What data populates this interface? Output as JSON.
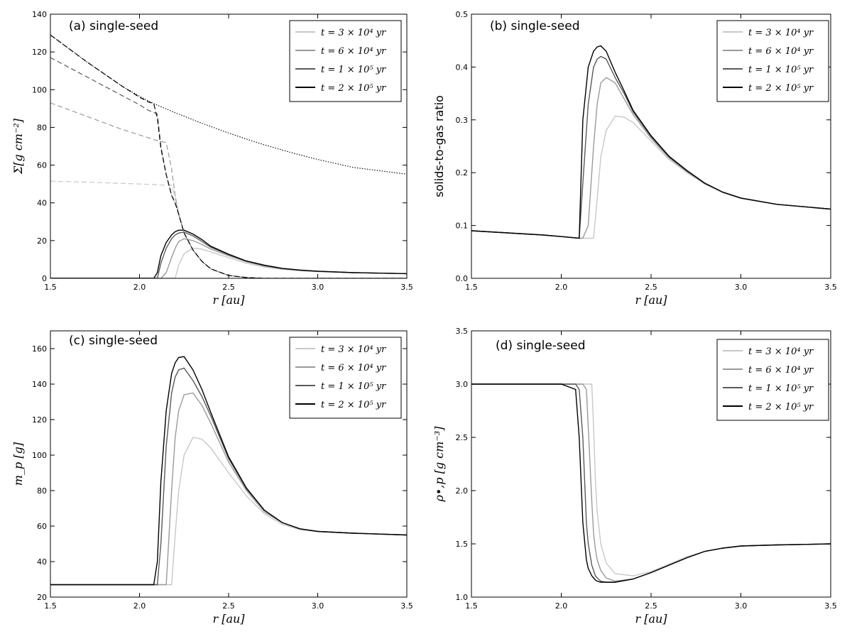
{
  "figure": {
    "panels": [
      {
        "id": "a",
        "title": "(a) single-seed",
        "xlabel": "r [au]",
        "ylabel": "Σ[g cm⁻²]"
      },
      {
        "id": "b",
        "title": "(b) single-seed",
        "xlabel": "r [au]",
        "ylabel": "solids-to-gas ratio"
      },
      {
        "id": "c",
        "title": "(c) single-seed",
        "xlabel": "r [au]",
        "ylabel": "m_p [g]"
      },
      {
        "id": "d",
        "title": "(d) single-seed",
        "xlabel": "r [au]",
        "ylabel": "ρ•,p [g cm⁻³]"
      }
    ]
  },
  "colors": {
    "t1": "#c8c8c8",
    "t2": "#9a9a9a",
    "t3": "#5a5a5a",
    "t4": "#000000"
  },
  "chart_data": [
    {
      "type": "line",
      "title": "(a) single-seed",
      "xlabel": "r [au]",
      "ylabel": "Σ[g cm⁻²]",
      "xlim": [
        1.5,
        3.5
      ],
      "ylim": [
        0,
        140
      ],
      "xticks": [
        1.5,
        2.0,
        2.5,
        3.0,
        3.5
      ],
      "yticks": [
        0,
        20,
        40,
        60,
        80,
        100,
        120,
        140
      ],
      "legend_position": "top-right",
      "x": [
        1.5,
        1.7,
        1.9,
        2.0,
        2.05,
        2.08,
        2.1,
        2.12,
        2.15,
        2.18,
        2.2,
        2.22,
        2.25,
        2.3,
        2.35,
        2.4,
        2.5,
        2.6,
        2.7,
        2.8,
        2.9,
        3.0,
        3.2,
        3.5
      ],
      "series": [
        {
          "name": "t = 3 × 10⁴ yr",
          "role": "solid",
          "color_key": "t1",
          "values": [
            0,
            0,
            0,
            0,
            0,
            0,
            0,
            0,
            0,
            0,
            0,
            7,
            13,
            16,
            15.5,
            14,
            11,
            8,
            6,
            4.8,
            4,
            3.5,
            3,
            2.5
          ]
        },
        {
          "name": "t = 6 × 10⁴ yr",
          "role": "solid",
          "color_key": "t2",
          "values": [
            0,
            0,
            0,
            0,
            0,
            0,
            0,
            0,
            3,
            11,
            16,
            19.5,
            21,
            20,
            18,
            15.5,
            12,
            8.8,
            6.5,
            5,
            4.2,
            3.7,
            3,
            2.5
          ]
        },
        {
          "name": "t = 1 × 10⁵ yr",
          "role": "solid",
          "color_key": "t3",
          "values": [
            0,
            0,
            0,
            0,
            0,
            0,
            0,
            8,
            16,
            21,
            23,
            24,
            24.5,
            22.5,
            19.5,
            16.5,
            12.5,
            9,
            6.8,
            5.2,
            4.3,
            3.7,
            3,
            2.5
          ]
        },
        {
          "name": "t = 2 × 10⁵ yr",
          "role": "solid",
          "color_key": "t4",
          "values": [
            0,
            0,
            0,
            0,
            0,
            0,
            3,
            12,
            19,
            23,
            24.7,
            25.5,
            25.5,
            23.5,
            20.5,
            17,
            12.8,
            9.2,
            7,
            5.3,
            4.4,
            3.8,
            3,
            2.5
          ]
        },
        {
          "name": "gas t = 3 × 10⁴ yr",
          "role": "dashed",
          "color_key": "t1",
          "values": [
            51.5,
            51,
            50.3,
            50,
            49.8,
            49.7,
            49.6,
            49.5,
            49.5,
            49.4,
            43,
            34,
            24,
            15,
            9,
            5,
            1.5,
            0.4,
            0,
            0,
            0,
            0,
            0,
            0
          ]
        },
        {
          "name": "gas t = 6 × 10⁴ yr",
          "role": "dashed",
          "color_key": "t2",
          "values": [
            93,
            86,
            79,
            76,
            74.5,
            73.5,
            73,
            72.5,
            72,
            58,
            44,
            34,
            24,
            15,
            9,
            5,
            1.5,
            0.4,
            0,
            0,
            0,
            0,
            0,
            0
          ]
        },
        {
          "name": "gas t = 1 × 10⁵ yr",
          "role": "dashed",
          "color_key": "t3",
          "values": [
            117,
            107,
            97,
            92,
            89,
            88,
            87,
            70,
            55,
            44,
            40,
            34,
            24,
            15,
            9,
            5,
            1.5,
            0.4,
            0,
            0,
            0,
            0,
            0,
            0
          ]
        },
        {
          "name": "gas t = 2 × 10⁵ yr",
          "role": "dashed",
          "color_key": "t4",
          "values": [
            129,
            115,
            102,
            96,
            93.5,
            92.5,
            85,
            69,
            55,
            44,
            40,
            34,
            24,
            15,
            9,
            5,
            1.5,
            0.4,
            0,
            0,
            0,
            0,
            0,
            0
          ]
        },
        {
          "name": "initial gas profile",
          "role": "dotted",
          "color_key": "t4",
          "values": [
            129,
            115,
            102,
            96.5,
            94,
            92.6,
            91.8,
            91,
            89.8,
            88.6,
            87.8,
            87,
            86,
            84,
            82.2,
            80.5,
            77,
            73.8,
            70.8,
            68,
            65.4,
            63,
            58.8,
            55.2
          ]
        }
      ]
    },
    {
      "type": "line",
      "title": "(b) single-seed",
      "xlabel": "r [au]",
      "ylabel": "solids-to-gas ratio",
      "xlim": [
        1.5,
        3.5
      ],
      "ylim": [
        0.0,
        0.5
      ],
      "xticks": [
        1.5,
        2.0,
        2.5,
        3.0,
        3.5
      ],
      "yticks": [
        0.0,
        0.1,
        0.2,
        0.3,
        0.4,
        0.5
      ],
      "legend_position": "top-right",
      "x": [
        1.5,
        1.7,
        1.9,
        2.0,
        2.1,
        2.12,
        2.15,
        2.18,
        2.2,
        2.22,
        2.25,
        2.3,
        2.35,
        2.4,
        2.5,
        2.6,
        2.7,
        2.8,
        2.9,
        3.0,
        3.2,
        3.5
      ],
      "series": [
        {
          "name": "t = 3 × 10⁴ yr",
          "color_key": "t1",
          "values": [
            0.09,
            0.086,
            0.082,
            0.079,
            0.076,
            0.076,
            0.076,
            0.076,
            0.15,
            0.23,
            0.28,
            0.307,
            0.305,
            0.295,
            0.26,
            0.225,
            0.2,
            0.178,
            0.162,
            0.151,
            0.14,
            0.131
          ]
        },
        {
          "name": "t = 6 × 10⁴ yr",
          "color_key": "t2",
          "values": [
            0.09,
            0.086,
            0.082,
            0.079,
            0.076,
            0.076,
            0.1,
            0.25,
            0.33,
            0.37,
            0.38,
            0.37,
            0.34,
            0.31,
            0.265,
            0.228,
            0.202,
            0.179,
            0.163,
            0.152,
            0.14,
            0.131
          ]
        },
        {
          "name": "t = 1 × 10⁵ yr",
          "color_key": "t3",
          "values": [
            0.09,
            0.086,
            0.082,
            0.079,
            0.076,
            0.18,
            0.33,
            0.4,
            0.415,
            0.42,
            0.415,
            0.38,
            0.35,
            0.315,
            0.268,
            0.23,
            0.203,
            0.18,
            0.163,
            0.152,
            0.14,
            0.131
          ]
        },
        {
          "name": "t = 2 × 10⁵ yr",
          "color_key": "t4",
          "values": [
            0.09,
            0.086,
            0.082,
            0.079,
            0.076,
            0.3,
            0.4,
            0.43,
            0.438,
            0.44,
            0.43,
            0.39,
            0.355,
            0.318,
            0.27,
            0.231,
            0.204,
            0.18,
            0.163,
            0.152,
            0.14,
            0.131
          ]
        }
      ]
    },
    {
      "type": "line",
      "title": "(c) single-seed",
      "xlabel": "r [au]",
      "ylabel": "m_p [g]",
      "xlim": [
        1.5,
        3.5
      ],
      "ylim": [
        20,
        170
      ],
      "xticks": [
        1.5,
        2.0,
        2.5,
        3.0,
        3.5
      ],
      "yticks": [
        20,
        40,
        60,
        80,
        100,
        120,
        140,
        160
      ],
      "legend_position": "top-right",
      "x": [
        1.5,
        1.7,
        1.9,
        2.0,
        2.08,
        2.1,
        2.12,
        2.15,
        2.18,
        2.2,
        2.22,
        2.25,
        2.3,
        2.35,
        2.4,
        2.5,
        2.6,
        2.7,
        2.8,
        2.9,
        3.0,
        3.2,
        3.5
      ],
      "series": [
        {
          "name": "t = 3 × 10⁴ yr",
          "color_key": "t1",
          "values": [
            27,
            27,
            27,
            27,
            27,
            27,
            27,
            27,
            27,
            55,
            80,
            100,
            110,
            109,
            104,
            90,
            77,
            67,
            61,
            58,
            57,
            56,
            55
          ]
        },
        {
          "name": "t = 6 × 10⁴ yr",
          "color_key": "t2",
          "values": [
            27,
            27,
            27,
            27,
            27,
            27,
            27,
            27,
            80,
            110,
            125,
            134,
            135,
            128,
            118,
            96,
            80,
            68,
            62,
            58.5,
            57,
            56,
            55
          ]
        },
        {
          "name": "t = 1 × 10⁵ yr",
          "color_key": "t3",
          "values": [
            27,
            27,
            27,
            27,
            27,
            27,
            50,
            105,
            135,
            144,
            148,
            149,
            142,
            133,
            122,
            98,
            81,
            69,
            62,
            58.5,
            57,
            56,
            55
          ]
        },
        {
          "name": "t = 2 × 10⁵ yr",
          "color_key": "t4",
          "values": [
            27,
            27,
            27,
            27,
            27,
            40,
            85,
            125,
            146,
            152,
            155,
            155.5,
            148,
            137,
            124,
            99,
            81.5,
            69,
            62,
            58.5,
            57,
            56,
            55
          ]
        }
      ]
    },
    {
      "type": "line",
      "title": "(d) single-seed",
      "xlabel": "r [au]",
      "ylabel": "ρ•,p [g cm⁻³]",
      "xlim": [
        1.5,
        3.5
      ],
      "ylim": [
        1.0,
        3.5
      ],
      "xticks": [
        1.5,
        2.0,
        2.5,
        3.0,
        3.5
      ],
      "yticks": [
        1.0,
        1.5,
        2.0,
        2.5,
        3.0,
        3.5
      ],
      "legend_position": "top-right",
      "x": [
        1.5,
        1.8,
        2.0,
        2.08,
        2.1,
        2.12,
        2.14,
        2.15,
        2.17,
        2.18,
        2.19,
        2.2,
        2.22,
        2.25,
        2.3,
        2.4,
        2.5,
        2.6,
        2.7,
        2.8,
        2.9,
        3.0,
        3.2,
        3.5
      ],
      "series": [
        {
          "name": "t = 3 × 10⁴ yr",
          "color_key": "t1",
          "values": [
            3.0,
            3.0,
            3.0,
            3.0,
            3.0,
            3.0,
            3.0,
            3.0,
            3.0,
            2.6,
            2.1,
            1.8,
            1.5,
            1.32,
            1.22,
            1.2,
            1.24,
            1.31,
            1.38,
            1.43,
            1.46,
            1.48,
            1.49,
            1.5
          ]
        },
        {
          "name": "t = 6 × 10⁴ yr",
          "color_key": "t2",
          "values": [
            3.0,
            3.0,
            3.0,
            3.0,
            3.0,
            3.0,
            2.95,
            2.6,
            1.9,
            1.6,
            1.45,
            1.35,
            1.25,
            1.18,
            1.15,
            1.17,
            1.23,
            1.3,
            1.37,
            1.43,
            1.46,
            1.48,
            1.49,
            1.5
          ]
        },
        {
          "name": "t = 1 × 10⁵ yr",
          "color_key": "t3",
          "values": [
            3.0,
            3.0,
            3.0,
            3.0,
            2.95,
            2.5,
            1.7,
            1.5,
            1.3,
            1.25,
            1.2,
            1.18,
            1.15,
            1.14,
            1.14,
            1.17,
            1.23,
            1.3,
            1.37,
            1.43,
            1.46,
            1.48,
            1.49,
            1.5
          ]
        },
        {
          "name": "t = 2 × 10⁵ yr",
          "color_key": "t4",
          "values": [
            3.0,
            3.0,
            3.0,
            2.95,
            2.5,
            1.7,
            1.35,
            1.27,
            1.2,
            1.18,
            1.16,
            1.15,
            1.14,
            1.14,
            1.14,
            1.17,
            1.23,
            1.3,
            1.37,
            1.43,
            1.46,
            1.48,
            1.49,
            1.5
          ]
        }
      ]
    }
  ]
}
